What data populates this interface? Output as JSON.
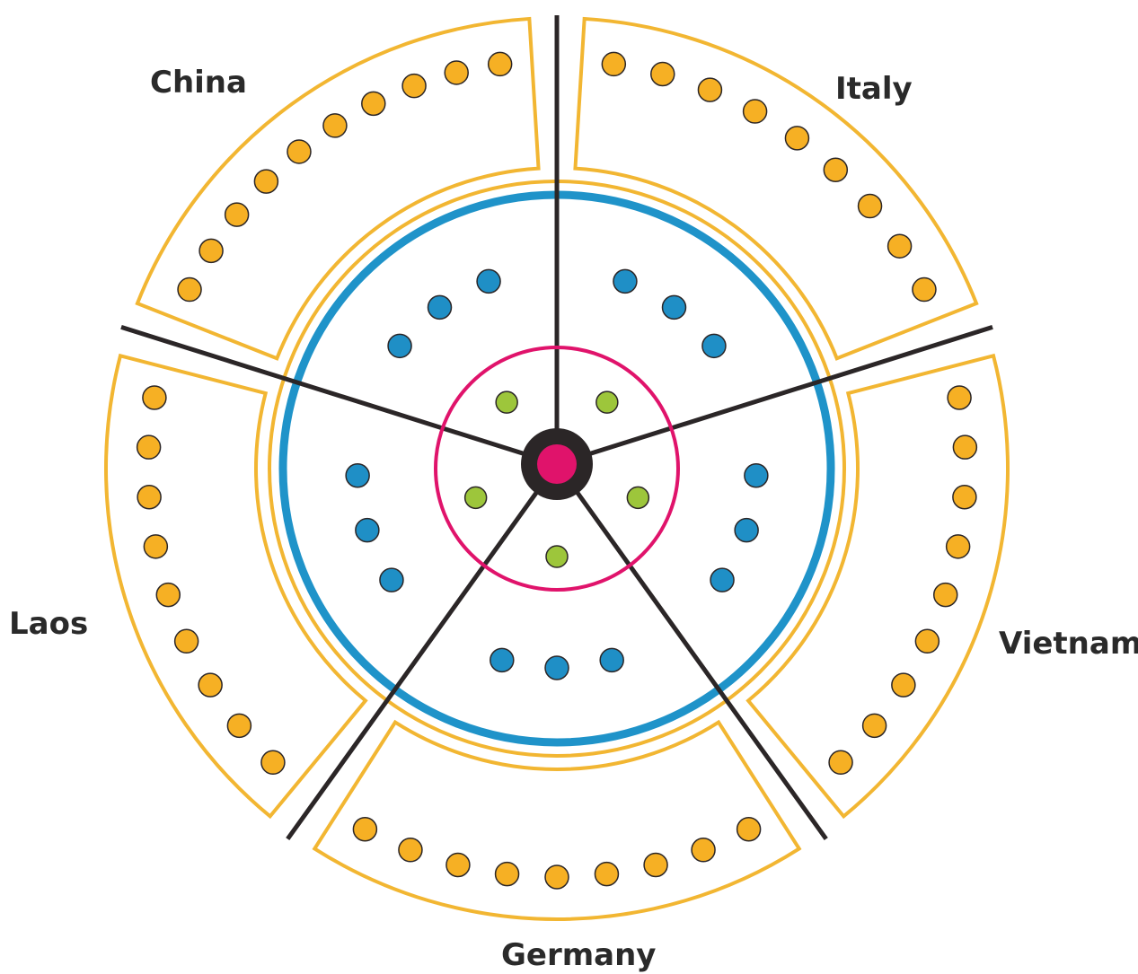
{
  "colors": {
    "outer_band": "#f2b632",
    "outer_dot": "#f6b024",
    "middle_ring": "#1f93c9",
    "middle_dot": "#1f8fc6",
    "inner_ring": "#e0136b",
    "inner_dot": "#9dc63b",
    "hub": "#2b2627",
    "hub_center": "#e0136b",
    "spoke": "#2b2627",
    "dot_outline": "#2b2627"
  },
  "segments": [
    {
      "name": "China",
      "outer_dots": 10,
      "middle_dots": 3
    },
    {
      "name": "Italy",
      "outer_dots": 9,
      "middle_dots": 3
    },
    {
      "name": "Vietnam",
      "outer_dots": 9,
      "middle_dots": 3
    },
    {
      "name": "Germany",
      "outer_dots": 9,
      "middle_dots": 3
    },
    {
      "name": "Laos",
      "outer_dots": 9,
      "middle_dots": 3
    }
  ],
  "inner_dots": 5
}
